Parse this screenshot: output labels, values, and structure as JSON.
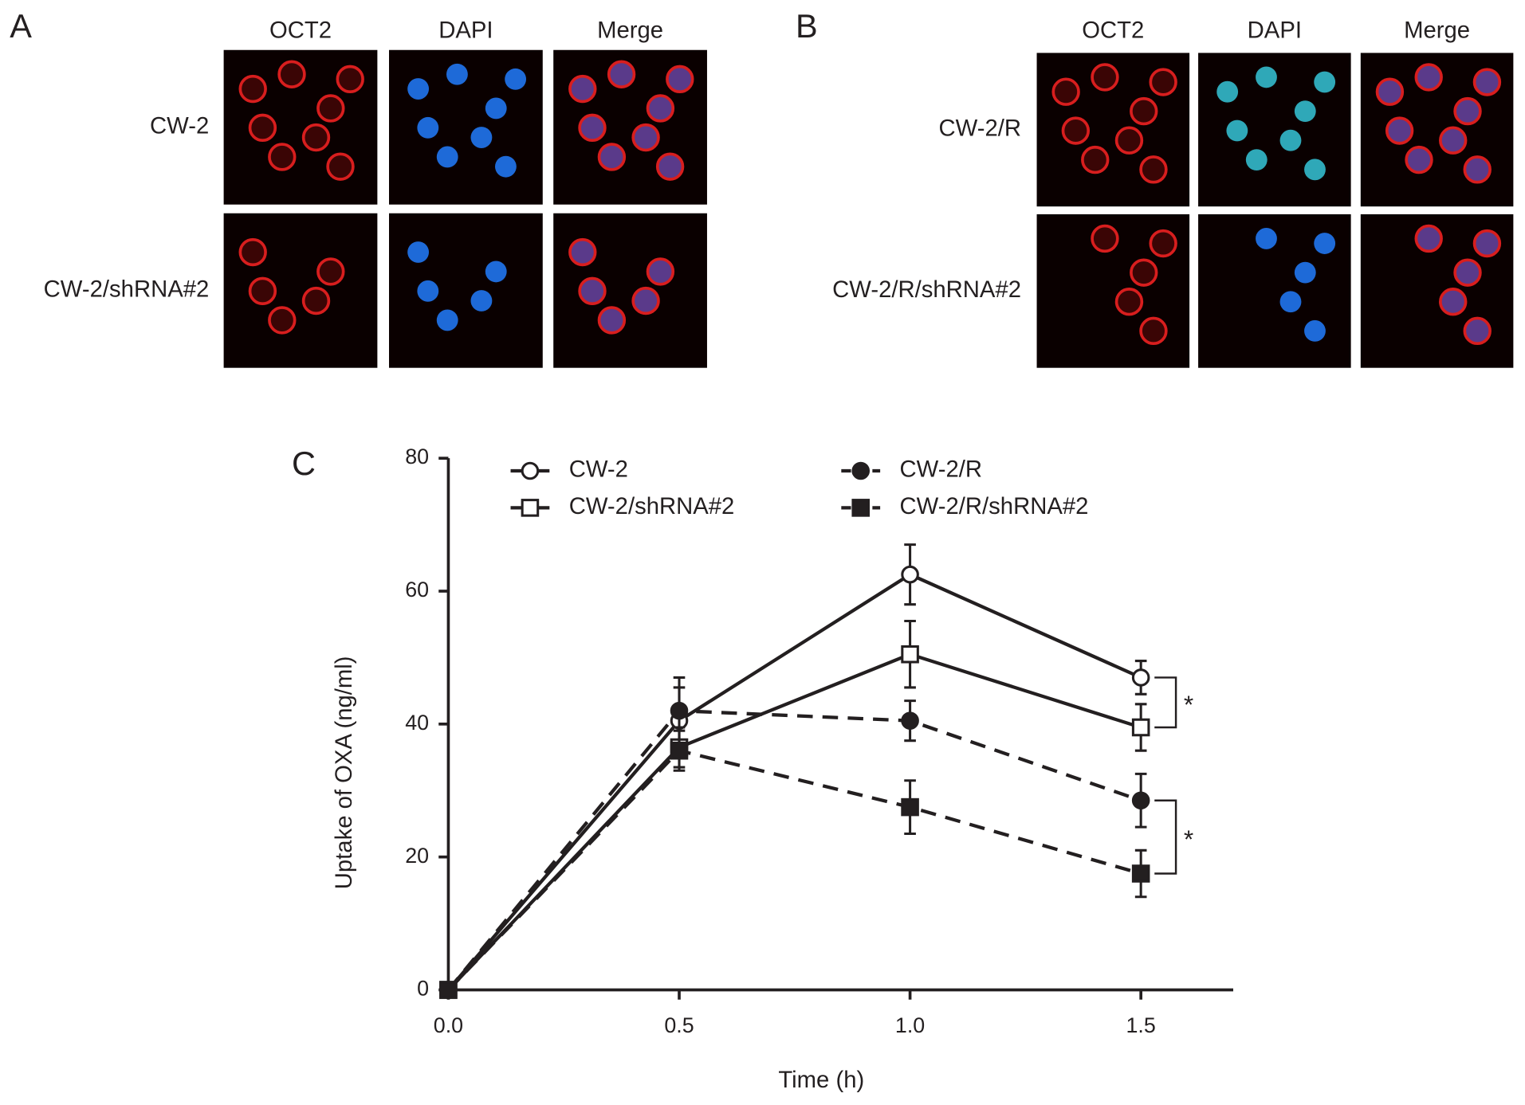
{
  "panels": [
    {
      "letter": "A",
      "columns": [
        "OCT2",
        "DAPI",
        "Merge"
      ],
      "rows": [
        "CW-2",
        "CW-2/shRNA#2"
      ]
    },
    {
      "letter": "B",
      "columns": [
        "OCT2",
        "DAPI",
        "Merge"
      ],
      "rows": [
        "CW-2/R",
        "CW-2/R/shRNA#2"
      ]
    }
  ],
  "chart_data": {
    "type": "line",
    "panel_letter": "C",
    "xlabel": "Time (h)",
    "ylabel": "Uptake of OXA (ng/ml)",
    "x": [
      0,
      0.5,
      1.0,
      1.5
    ],
    "xlim": [
      0,
      1.7
    ],
    "xticks": [
      {
        "value": 0,
        "label": "0.0"
      },
      0.5,
      {
        "value": 1.0,
        "label": "1.0"
      },
      1.5
    ],
    "ylim": [
      0,
      80
    ],
    "yticks": [
      0,
      20,
      40,
      60,
      80
    ],
    "series": [
      {
        "name": "CW-2",
        "color": "#231f20",
        "linestyle": "solid",
        "marker": "circle",
        "filled": false,
        "values": [
          0,
          40.5,
          62.5,
          47
        ],
        "errors": [
          0,
          5,
          4.5,
          2.5
        ]
      },
      {
        "name": "CW-2/shRNA#2",
        "color": "#231f20",
        "linestyle": "solid",
        "marker": "square",
        "filled": false,
        "values": [
          0,
          36.5,
          50.5,
          39.5
        ],
        "errors": [
          0,
          3,
          5,
          3.5
        ]
      },
      {
        "name": "CW-2/R",
        "color": "#231f20",
        "linestyle": "dashed",
        "marker": "circle",
        "filled": true,
        "values": [
          0,
          42,
          40.5,
          28.5
        ],
        "errors": [
          0,
          5,
          3,
          4
        ]
      },
      {
        "name": "CW-2/R/shRNA#2",
        "color": "#231f20",
        "linestyle": "dashed",
        "marker": "square",
        "filled": true,
        "values": [
          0,
          36,
          27.5,
          17.5
        ],
        "errors": [
          0,
          3,
          4,
          3.5
        ]
      }
    ],
    "annotations": [
      {
        "text": "*",
        "between": [
          0,
          1
        ]
      },
      {
        "text": "*",
        "between": [
          2,
          3
        ]
      }
    ]
  }
}
